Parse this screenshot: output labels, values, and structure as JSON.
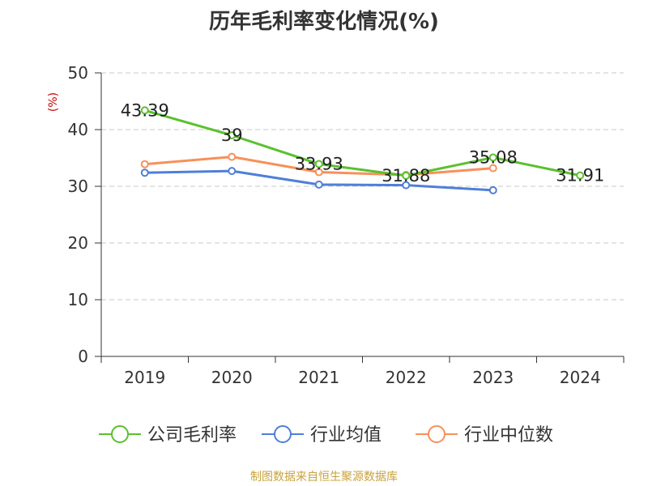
{
  "chart_data": {
    "type": "line",
    "title": "历年毛利率变化情况(%)",
    "ylabel": "(%)",
    "xlabel": "",
    "categories": [
      "2019",
      "2020",
      "2021",
      "2022",
      "2023",
      "2024"
    ],
    "ylim": [
      0,
      50
    ],
    "yticks": [
      0,
      10,
      20,
      30,
      40,
      50
    ],
    "grid": true,
    "legend_position": "bottom",
    "series": [
      {
        "name": "公司毛利率",
        "color": "#5ac12e",
        "values": [
          43.39,
          39,
          33.93,
          31.88,
          35.08,
          31.91
        ],
        "show_labels": true
      },
      {
        "name": "行业均值",
        "color": "#4f7fd8",
        "values": [
          32.4,
          32.7,
          30.3,
          30.2,
          29.3,
          null
        ],
        "show_labels": false
      },
      {
        "name": "行业中位数",
        "color": "#f7905a",
        "values": [
          33.9,
          35.2,
          32.5,
          32.0,
          33.2,
          null
        ],
        "show_labels": false
      }
    ]
  },
  "footer": {
    "source": "制图数据来自恒生聚源数据库"
  }
}
